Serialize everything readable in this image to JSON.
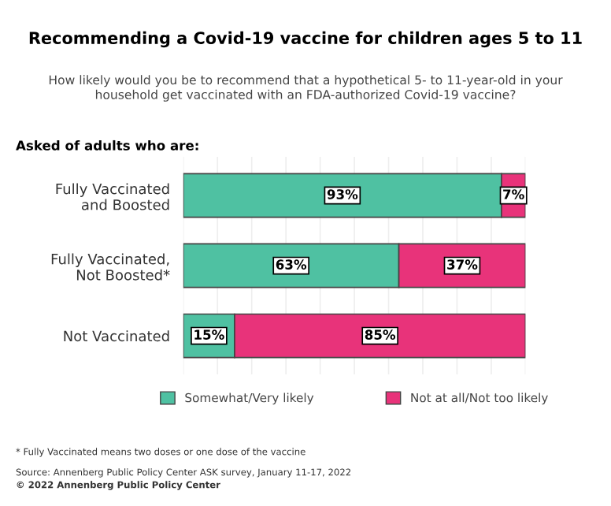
{
  "chart_data": {
    "type": "bar",
    "orientation": "horizontal",
    "stacked": true,
    "title": "Recommending a Covid-19 vaccine for children ages 5 to 11",
    "subtitle": "How likely would you be to recommend that a hypothetical 5- to 11-year-old in your\nhousehold get vaccinated with an FDA-authorized Covid-19 vaccine?",
    "categories": [
      "Fully Vaccinated\nand Boosted",
      "Fully Vaccinated,\nNot Boosted*",
      "Not Vaccinated"
    ],
    "series": [
      {
        "name": "Somewhat/Very likely",
        "color": "#4fc1a2",
        "values": [
          93,
          63,
          15
        ],
        "value_labels": [
          "93%",
          "63%",
          "15%"
        ]
      },
      {
        "name": "Not at all/Not too likely",
        "color": "#e8337a",
        "values": [
          7,
          37,
          85
        ],
        "value_labels": [
          "7%",
          "37%",
          "85%"
        ]
      }
    ],
    "xlim": [
      0,
      100
    ],
    "xticks": [
      {
        "value": 0,
        "label": null
      },
      {
        "value": 10,
        "label": null
      },
      {
        "value": 20,
        "label": null
      },
      {
        "value": 30,
        "label": null
      },
      {
        "value": 40,
        "label": null
      },
      {
        "value": 50,
        "label": null
      },
      {
        "value": 60,
        "label": null
      },
      {
        "value": 70,
        "label": null
      },
      {
        "value": 80,
        "label": null
      },
      {
        "value": 90,
        "label": null
      },
      {
        "value": 100,
        "label": null
      }
    ],
    "grid": "x",
    "tick_labels": "y",
    "legend": "bottom",
    "annotations": [
      "Asked of adults who are:",
      "* Fully Vaccinated means two doses or one dose of the vaccine",
      "Source: Annenberg Public Policy Center ASK survey, January 11-17, 2022",
      "© 2022 Annenberg Public Policy Center"
    ]
  }
}
